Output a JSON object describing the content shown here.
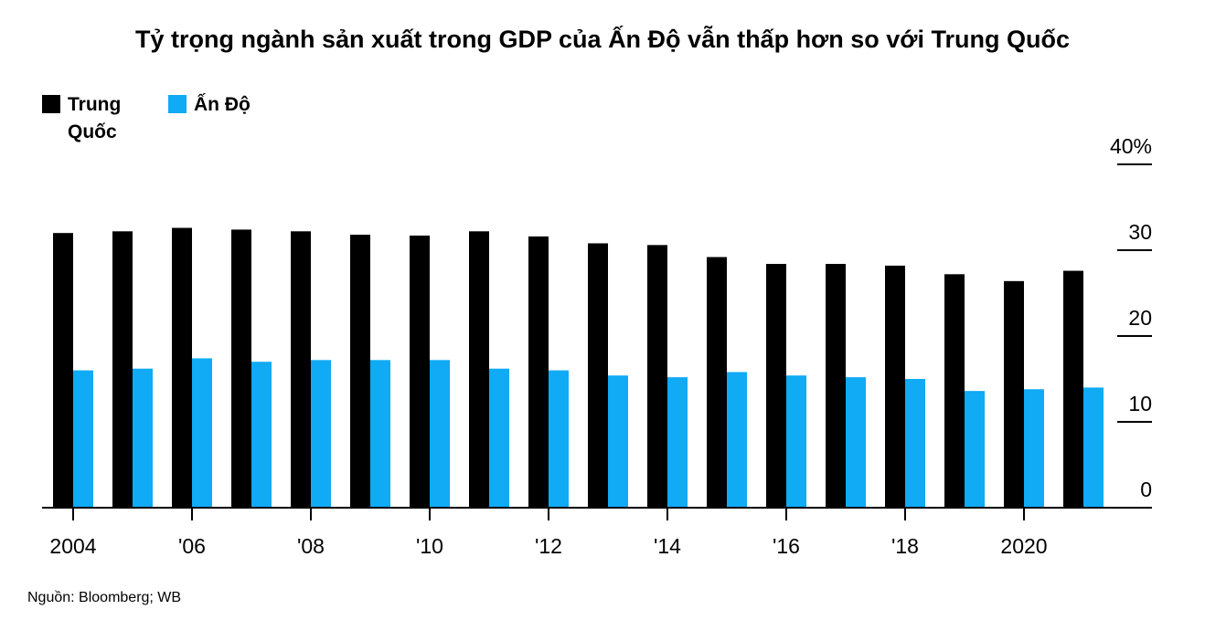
{
  "title": "Tỷ trọng ngành sản xuất trong GDP của Ấn Độ vẫn thấp hơn so với Trung Quốc",
  "source": "Nguồn: Bloomberg; WB",
  "colors": {
    "china": "#000000",
    "india": "#10aaf5",
    "axis": "#000000"
  },
  "chart_data": {
    "type": "bar",
    "categories": [
      "2004",
      "2005",
      "2006",
      "2007",
      "2008",
      "2009",
      "2010",
      "2011",
      "2012",
      "2013",
      "2014",
      "2015",
      "2016",
      "2017",
      "2018",
      "2019",
      "2020",
      "2021"
    ],
    "series": [
      {
        "name": "Trung Quốc",
        "values": [
          32.0,
          32.2,
          32.6,
          32.4,
          32.2,
          31.8,
          31.7,
          32.2,
          31.6,
          30.8,
          30.6,
          29.2,
          28.4,
          28.4,
          28.2,
          27.2,
          26.4,
          27.6
        ]
      },
      {
        "name": "Ấn Độ",
        "values": [
          16.0,
          16.2,
          17.4,
          17.0,
          17.2,
          17.2,
          17.2,
          16.2,
          16.0,
          15.4,
          15.2,
          15.8,
          15.4,
          15.2,
          15.0,
          13.6,
          13.8,
          14.0
        ]
      }
    ],
    "x_tick_labels": [
      "2004",
      "'06",
      "'08",
      "'10",
      "'12",
      "'14",
      "'16",
      "'18",
      "2020"
    ],
    "x_tick_index": [
      0,
      2,
      4,
      6,
      8,
      10,
      12,
      14,
      16
    ],
    "y_ticks": [
      0,
      10,
      20,
      30,
      40
    ],
    "y_tick_labels": [
      "0",
      "10",
      "20",
      "30",
      "40%"
    ],
    "ylim": [
      0,
      40
    ],
    "y_axis_side": "right",
    "legend_position": "top-left",
    "grid": false
  }
}
